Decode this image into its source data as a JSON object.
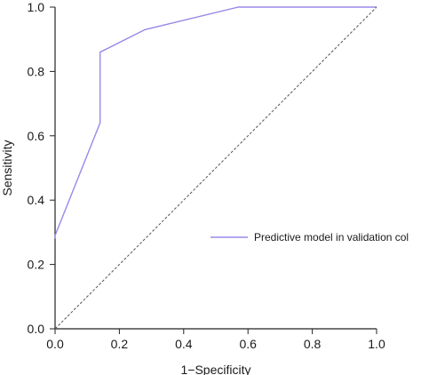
{
  "chart_data": {
    "type": "line",
    "title": "",
    "xlabel": "1−Specificity",
    "ylabel": "Sensitivity",
    "xlim": [
      0,
      1
    ],
    "ylim": [
      0,
      1
    ],
    "x_ticks": [
      "0.0",
      "0.2",
      "0.4",
      "0.6",
      "0.8",
      "1.0"
    ],
    "y_ticks": [
      "0.0",
      "0.2",
      "0.4",
      "0.6",
      "0.8",
      "1.0"
    ],
    "grid": false,
    "legend_position": "center-right",
    "series": [
      {
        "name": "Predictive model in validation col",
        "color": "#9b87e8",
        "x": [
          0.0,
          0.0,
          0.14,
          0.14,
          0.28,
          0.57,
          1.0
        ],
        "y": [
          0.28,
          0.29,
          0.64,
          0.86,
          0.93,
          1.0,
          1.0
        ]
      },
      {
        "color": "#555555",
        "line_style": "dashed",
        "x": [
          0.0,
          1.0
        ],
        "y": [
          0.0,
          1.0
        ]
      }
    ]
  }
}
